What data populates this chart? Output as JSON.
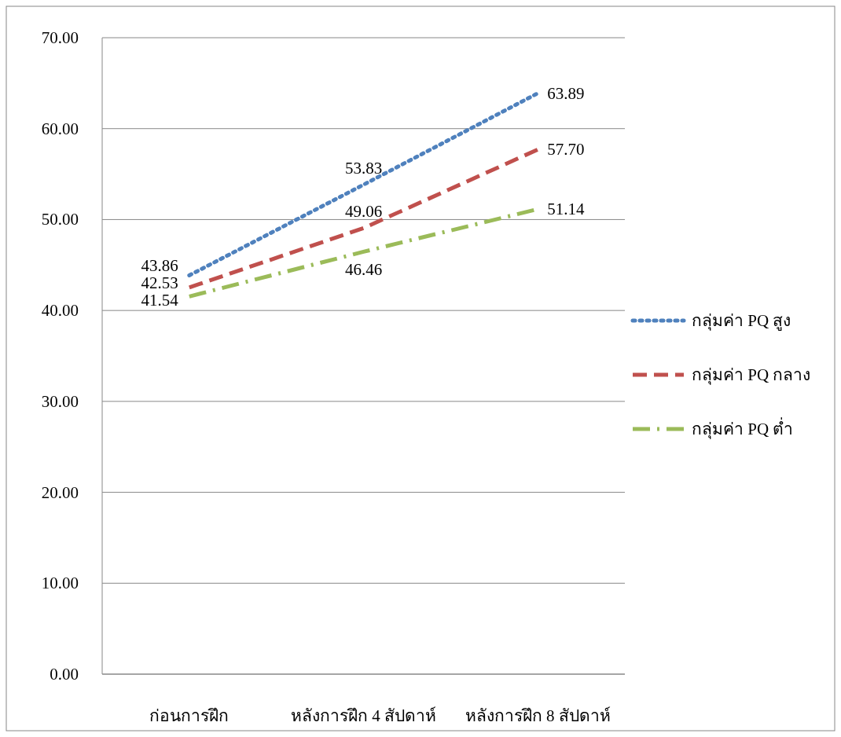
{
  "chart_data": {
    "type": "line",
    "categories": [
      "ก่อนการฝึก",
      "หลังการฝึก 4 สัปดาห์",
      "หลังการฝึก 8 สัปดาห์"
    ],
    "series": [
      {
        "name": "กลุ่มค่า PQ สูง",
        "color": "#4f81bd",
        "line_style": "dotted",
        "values": [
          43.86,
          53.83,
          63.89
        ],
        "value_labels": [
          "43.86",
          "53.83",
          "63.89"
        ]
      },
      {
        "name": "กลุ่มค่า PQ กลาง",
        "color": "#c0504d",
        "line_style": "dashed",
        "values": [
          42.53,
          49.06,
          57.7
        ],
        "value_labels": [
          "42.53",
          "49.06",
          "57.70"
        ]
      },
      {
        "name": "กลุ่มค่า PQ ต่ำ",
        "color": "#9bbb59",
        "line_style": "dashdot",
        "values": [
          41.54,
          46.46,
          51.14
        ],
        "value_labels": [
          "41.54",
          "46.46",
          "51.14"
        ]
      }
    ],
    "ylim": [
      0,
      70
    ],
    "yticks": [
      {
        "value": 0,
        "label": "0.00"
      },
      {
        "value": 10,
        "label": "10.00"
      },
      {
        "value": 20,
        "label": "20.00"
      },
      {
        "value": 30,
        "label": "30.00"
      },
      {
        "value": 40,
        "label": "40.00"
      },
      {
        "value": 50,
        "label": "50.00"
      },
      {
        "value": 60,
        "label": "60.00"
      },
      {
        "value": 70,
        "label": "70.00"
      }
    ],
    "grid": "y",
    "legend": "right",
    "marker": "none"
  }
}
